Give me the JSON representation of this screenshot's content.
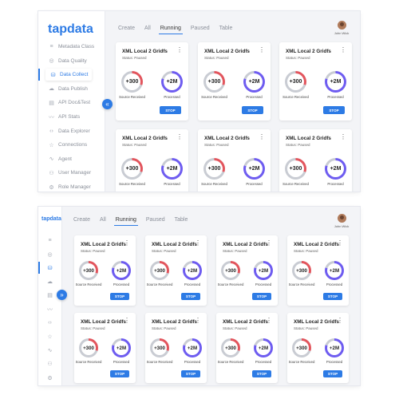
{
  "app": {
    "logo": "tapdata",
    "user_name": "John Wick"
  },
  "tabs": [
    "Create",
    "All",
    "Running",
    "Paused",
    "Table"
  ],
  "active_tab": "Running",
  "sidebar": {
    "items": [
      {
        "label": "Metadata Class",
        "icon": "layers-icon"
      },
      {
        "label": "Data Quality",
        "icon": "check-circle-icon"
      },
      {
        "label": "Data Collect",
        "icon": "database-icon"
      },
      {
        "label": "Data Publish",
        "icon": "cloud-icon"
      },
      {
        "label": "API Doc&Test",
        "icon": "api-doc-icon"
      },
      {
        "label": "API Stats",
        "icon": "chart-line-icon"
      },
      {
        "label": "Data Explorer",
        "icon": "code-icon"
      },
      {
        "label": "Connections",
        "icon": "star-icon"
      },
      {
        "label": "Agent",
        "icon": "pulse-icon"
      },
      {
        "label": "User Manager",
        "icon": "user-icon"
      },
      {
        "label": "Role Manager",
        "icon": "role-icon"
      }
    ],
    "active_index": 2
  },
  "card": {
    "title": "XML Local 2 Gridfs",
    "status": "Status: Paused",
    "source_value": "+300",
    "source_label": "Source Received",
    "processed_value": "+2M",
    "processed_label": "Processed",
    "stop_label": "STOP",
    "source_progress": 0.3,
    "processed_progress": 0.8
  },
  "colors": {
    "accent": "#2d7be5",
    "source_ring": "#e2555d",
    "processed_ring": "#6e5cf0",
    "ring_track": "#c9ccd3"
  }
}
